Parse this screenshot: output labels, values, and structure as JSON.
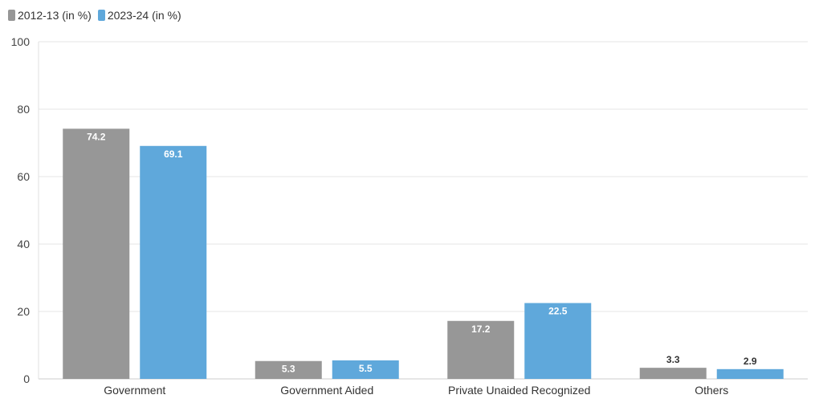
{
  "chart_data": {
    "type": "bar",
    "categories": [
      "Government",
      "Government Aided",
      "Private Unaided Recognized",
      "Others"
    ],
    "series": [
      {
        "name": "2012-13 (in %)",
        "values": [
          74.2,
          5.3,
          17.2,
          3.3
        ],
        "color": "#979797"
      },
      {
        "name": "2023-24 (in %)",
        "values": [
          69.1,
          5.5,
          22.5,
          2.9
        ],
        "color": "#5fa8db"
      }
    ],
    "ylim": [
      0,
      100
    ],
    "yticks": [
      0,
      20,
      40,
      60,
      80,
      100
    ],
    "grid": true,
    "legend": "top-left"
  }
}
